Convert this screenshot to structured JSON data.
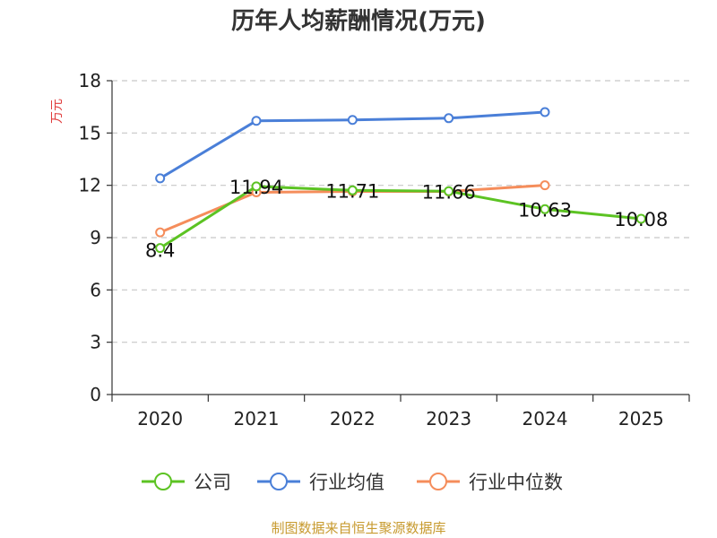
{
  "chart_data": {
    "type": "line",
    "title": "历年人均薪酬情况(万元)",
    "ylabel": "万元",
    "xlabel": "",
    "categories": [
      "2020",
      "2021",
      "2022",
      "2023",
      "2024",
      "2025"
    ],
    "ylim": [
      0,
      18
    ],
    "yticks": [
      0,
      3,
      6,
      9,
      12,
      15,
      18
    ],
    "grid": true,
    "legend_position": "bottom",
    "series": [
      {
        "name": "公司",
        "color": "#5cc323",
        "values": [
          8.4,
          11.94,
          11.71,
          11.66,
          10.63,
          10.08
        ],
        "labels": [
          "8.4",
          "11.94",
          "11.71",
          "11.66",
          "10.63",
          "10.08"
        ]
      },
      {
        "name": "行业均值",
        "color": "#4a7fd8",
        "values": [
          12.4,
          15.7,
          15.75,
          15.85,
          16.2,
          null
        ]
      },
      {
        "name": "行业中位数",
        "color": "#f58d5b",
        "values": [
          9.3,
          11.6,
          11.65,
          11.65,
          12.0,
          null
        ]
      }
    ]
  },
  "source": "制图数据来自恒生聚源数据库"
}
